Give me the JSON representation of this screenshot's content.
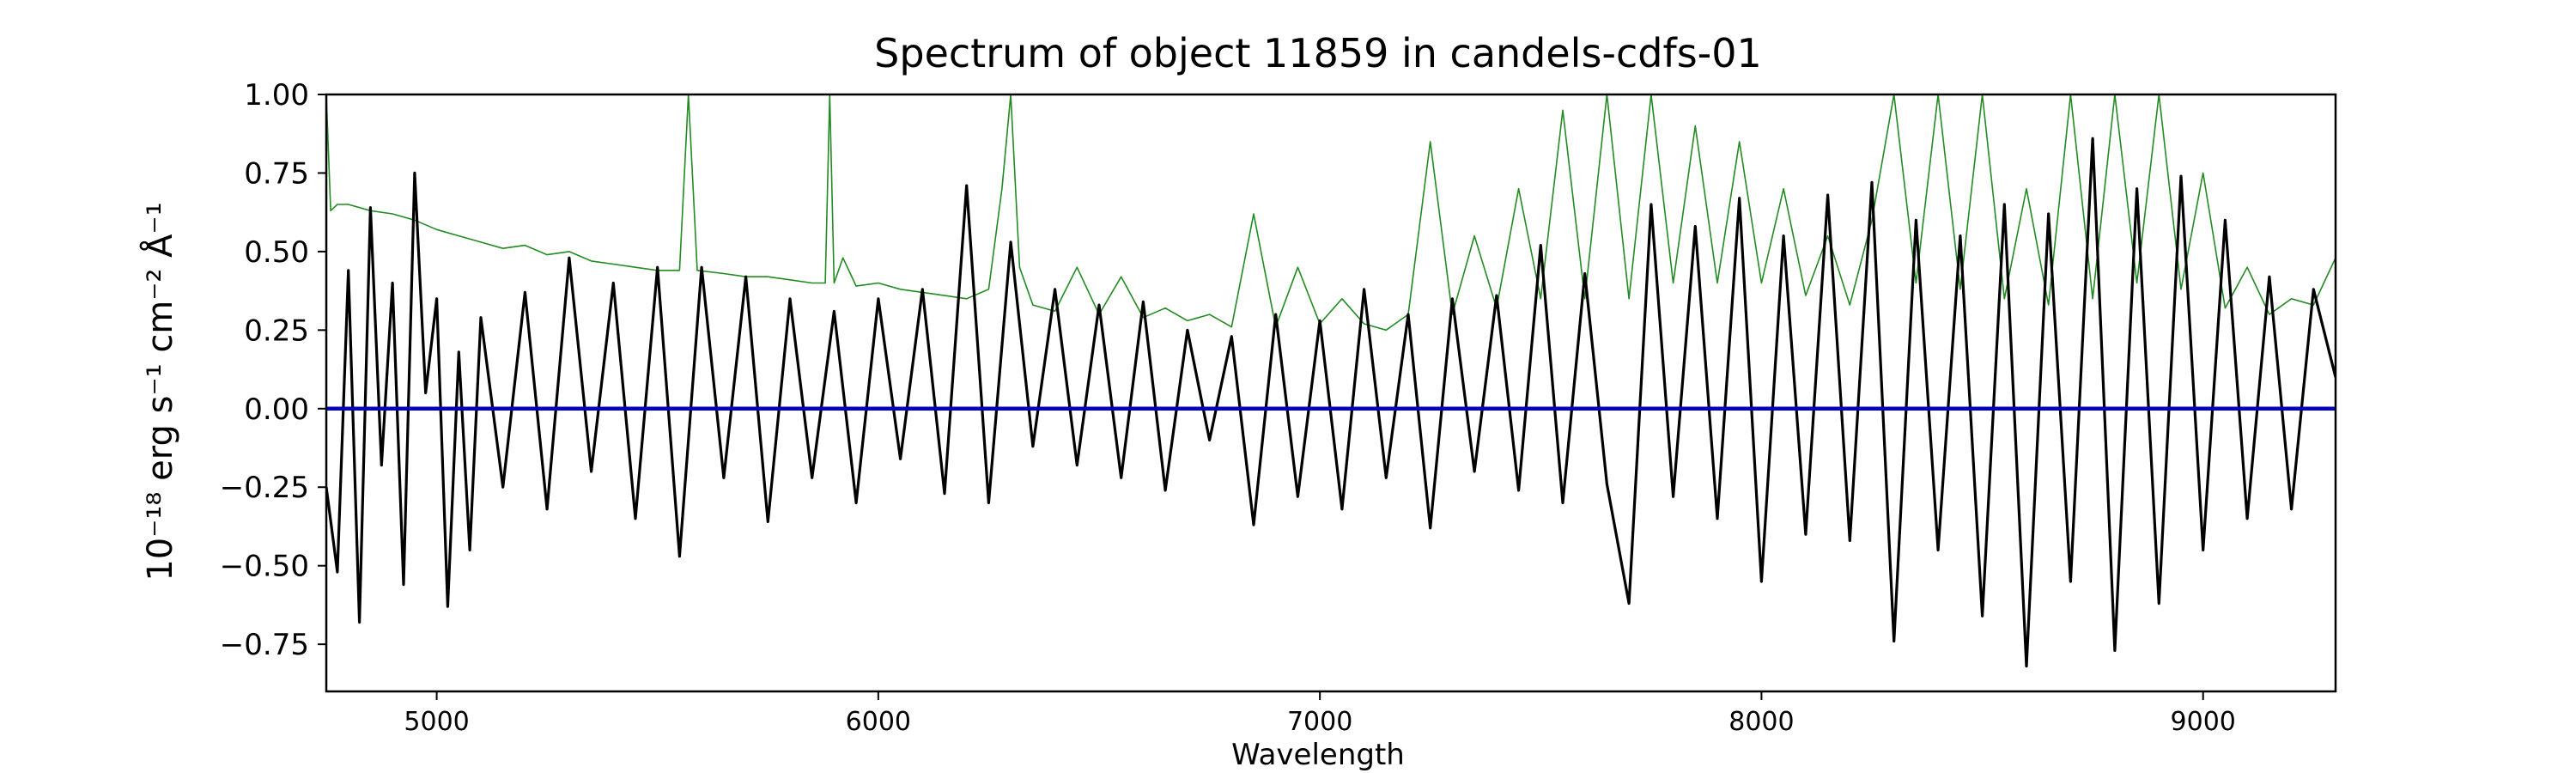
{
  "chart_data": {
    "type": "line",
    "title": "Spectrum of object 11859 in candels-cdfs-01",
    "xlabel": "Wavelength",
    "ylabel": "10⁻¹⁸ erg s⁻¹ cm⁻² Å⁻¹",
    "xlim": [
      4750,
      9300
    ],
    "ylim": [
      -0.9,
      1.0
    ],
    "xticks": [
      5000,
      6000,
      7000,
      8000,
      9000
    ],
    "yticks": [
      -0.75,
      -0.5,
      -0.25,
      0.0,
      0.25,
      0.5,
      0.75,
      1.0
    ],
    "ytick_labels": [
      "−0.75",
      "−0.50",
      "−0.25",
      "0.00",
      "0.25",
      "0.50",
      "0.75",
      "1.00"
    ],
    "grid": false,
    "legend": "none",
    "series": [
      {
        "role": "flux",
        "color": "#000000",
        "x": [
          4750,
          4775,
          4800,
          4825,
          4850,
          4875,
          4900,
          4925,
          4950,
          4975,
          5000,
          5025,
          5050,
          5075,
          5100,
          5150,
          5200,
          5250,
          5300,
          5350,
          5400,
          5450,
          5500,
          5550,
          5600,
          5650,
          5700,
          5750,
          5800,
          5850,
          5900,
          5950,
          6000,
          6050,
          6100,
          6150,
          6200,
          6250,
          6300,
          6350,
          6400,
          6450,
          6500,
          6550,
          6600,
          6650,
          6700,
          6750,
          6800,
          6850,
          6900,
          6950,
          7000,
          7050,
          7100,
          7150,
          7200,
          7250,
          7300,
          7350,
          7400,
          7450,
          7500,
          7550,
          7600,
          7650,
          7700,
          7750,
          7800,
          7850,
          7900,
          7950,
          8000,
          8050,
          8100,
          8150,
          8200,
          8250,
          8300,
          8350,
          8400,
          8450,
          8500,
          8550,
          8600,
          8650,
          8700,
          8750,
          8800,
          8850,
          8900,
          8950,
          9000,
          9050,
          9100,
          9150,
          9200,
          9250,
          9300
        ],
        "y": [
          -0.25,
          -0.52,
          0.44,
          -0.68,
          0.64,
          -0.18,
          0.4,
          -0.56,
          0.75,
          0.05,
          0.35,
          -0.63,
          0.18,
          -0.45,
          0.29,
          -0.25,
          0.37,
          -0.32,
          0.48,
          -0.2,
          0.4,
          -0.35,
          0.45,
          -0.47,
          0.45,
          -0.22,
          0.42,
          -0.36,
          0.35,
          -0.22,
          0.31,
          -0.3,
          0.35,
          -0.16,
          0.38,
          -0.27,
          0.71,
          -0.3,
          0.53,
          -0.12,
          0.38,
          -0.18,
          0.33,
          -0.22,
          0.34,
          -0.26,
          0.25,
          -0.1,
          0.23,
          -0.37,
          0.3,
          -0.28,
          0.28,
          -0.32,
          0.38,
          -0.22,
          0.3,
          -0.38,
          0.35,
          -0.2,
          0.36,
          -0.26,
          0.52,
          -0.3,
          0.43,
          -0.24,
          -0.62,
          0.65,
          -0.28,
          0.58,
          -0.35,
          0.67,
          -0.55,
          0.55,
          -0.4,
          0.68,
          -0.42,
          0.72,
          -0.74,
          0.6,
          -0.45,
          0.55,
          -0.66,
          0.65,
          -0.82,
          0.62,
          -0.55,
          0.86,
          -0.77,
          0.7,
          -0.62,
          0.74,
          -0.45,
          0.6,
          -0.35,
          0.42,
          -0.32,
          0.38,
          0.1
        ]
      },
      {
        "role": "error",
        "color": "#228b22",
        "x": [
          4750,
          4760,
          4775,
          4800,
          4850,
          4900,
          4950,
          5000,
          5050,
          5100,
          5150,
          5200,
          5250,
          5300,
          5350,
          5400,
          5450,
          5500,
          5550,
          5570,
          5590,
          5650,
          5700,
          5750,
          5800,
          5850,
          5880,
          5890,
          5900,
          5920,
          5950,
          6000,
          6050,
          6100,
          6150,
          6200,
          6250,
          6280,
          6300,
          6320,
          6350,
          6400,
          6450,
          6500,
          6550,
          6600,
          6650,
          6700,
          6750,
          6800,
          6850,
          6900,
          6950,
          7000,
          7050,
          7100,
          7150,
          7200,
          7250,
          7300,
          7350,
          7400,
          7450,
          7500,
          7550,
          7600,
          7650,
          7700,
          7750,
          7800,
          7850,
          7900,
          7950,
          8000,
          8050,
          8100,
          8150,
          8200,
          8250,
          8300,
          8350,
          8400,
          8450,
          8500,
          8550,
          8600,
          8650,
          8700,
          8750,
          8800,
          8850,
          8900,
          8950,
          9000,
          9050,
          9100,
          9150,
          9200,
          9250,
          9300
        ],
        "y": [
          1.0,
          0.63,
          0.65,
          0.65,
          0.63,
          0.62,
          0.6,
          0.57,
          0.55,
          0.53,
          0.51,
          0.52,
          0.49,
          0.5,
          0.47,
          0.46,
          0.45,
          0.44,
          0.44,
          1.0,
          0.44,
          0.43,
          0.42,
          0.42,
          0.41,
          0.4,
          0.4,
          1.0,
          0.4,
          0.48,
          0.39,
          0.4,
          0.38,
          0.37,
          0.36,
          0.35,
          0.38,
          0.7,
          1.0,
          0.45,
          0.33,
          0.31,
          0.45,
          0.3,
          0.42,
          0.29,
          0.32,
          0.28,
          0.3,
          0.26,
          0.62,
          0.26,
          0.45,
          0.27,
          0.35,
          0.27,
          0.25,
          0.3,
          0.85,
          0.3,
          0.55,
          0.32,
          0.7,
          0.35,
          0.95,
          0.35,
          1.0,
          0.35,
          1.0,
          0.4,
          0.9,
          0.4,
          0.85,
          0.4,
          0.7,
          0.36,
          0.55,
          0.33,
          0.6,
          1.0,
          0.4,
          1.0,
          0.38,
          1.0,
          0.35,
          0.7,
          0.33,
          1.0,
          0.35,
          1.0,
          0.4,
          1.0,
          0.38,
          0.75,
          0.32,
          0.45,
          0.3,
          0.35,
          0.33,
          0.48
        ]
      },
      {
        "role": "zero-line",
        "color": "#0000bb",
        "x": [
          4750,
          9300
        ],
        "y": [
          0.0,
          0.0
        ]
      }
    ]
  }
}
